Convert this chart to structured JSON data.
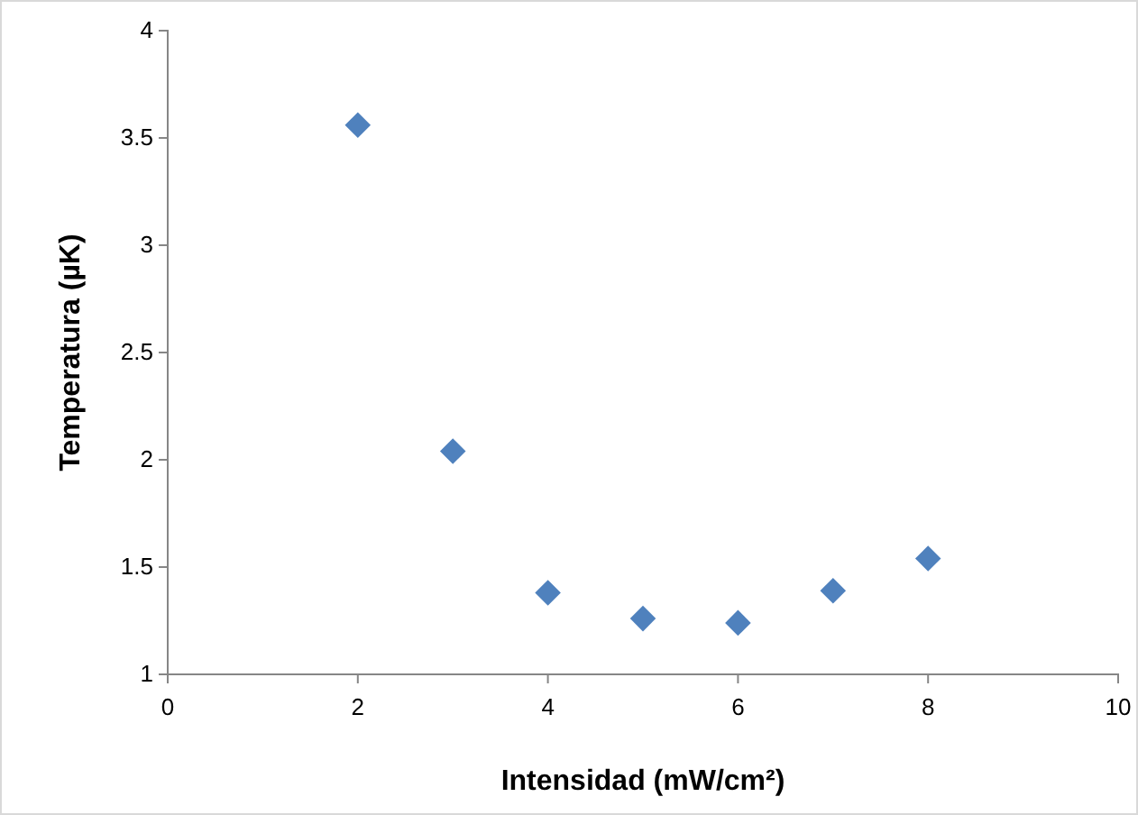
{
  "chart_data": {
    "type": "scatter",
    "xlabel": "Intensidad (mW/cm²)",
    "ylabel": "Temperatura (µK)",
    "x": [
      2,
      3,
      4,
      5,
      6,
      7,
      8
    ],
    "series": [
      {
        "color": "#4f81bd",
        "values": [
          3.56,
          2.04,
          1.38,
          1.26,
          1.24,
          1.39,
          1.54
        ]
      }
    ],
    "xlim": [
      0,
      10
    ],
    "xticks": [
      0,
      2,
      4,
      6,
      8,
      10
    ],
    "ylim": [
      1,
      4
    ],
    "yticks": [
      1,
      1.5,
      2,
      2.5,
      3,
      3.5,
      4
    ],
    "marker": "diamond",
    "grid": false
  }
}
